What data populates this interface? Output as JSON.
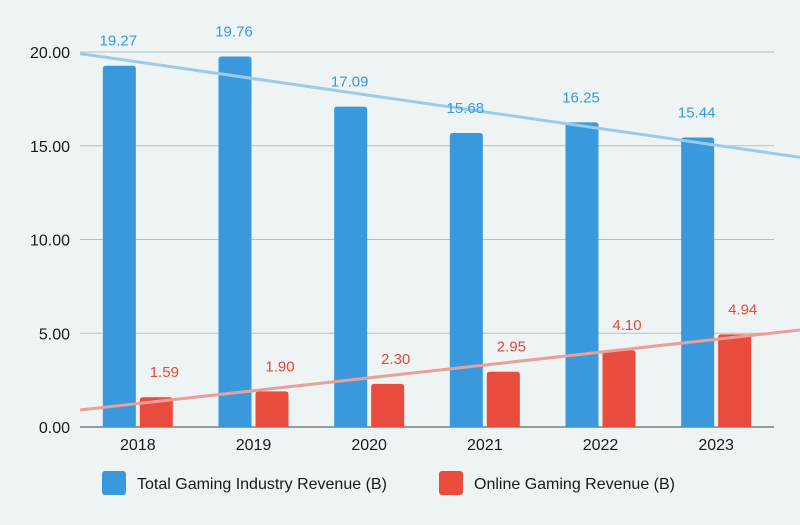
{
  "chart_data": {
    "type": "bar",
    "categories": [
      "2018",
      "2019",
      "2020",
      "2021",
      "2022",
      "2023"
    ],
    "series": [
      {
        "name": "Total Gaming Industry Revenue (B)",
        "values": [
          19.27,
          19.76,
          17.09,
          15.68,
          16.25,
          15.44
        ],
        "labels": [
          "19.27",
          "19.76",
          "17.09",
          "15.68",
          "16.25",
          "15.44"
        ],
        "color": "#3a99dd",
        "label_color": "#3a99dd",
        "trendline_color": "#9ccbe8"
      },
      {
        "name": "Online Gaming Revenue (B)",
        "values": [
          1.59,
          1.9,
          2.3,
          2.95,
          4.1,
          4.94
        ],
        "labels": [
          "1.59",
          "1.90",
          "2.30",
          "2.95",
          "4.10",
          "4.94"
        ],
        "color": "#e94b3c",
        "label_color": "#e04a3a",
        "trendline_color": "#e8a09a"
      }
    ],
    "trendlines": "linear",
    "ylim": [
      0,
      20
    ],
    "yticks": [
      "0.00",
      "5.00",
      "10.00",
      "15.00",
      "20.00"
    ],
    "grid": true,
    "legend_position": "bottom",
    "title": "",
    "xlabel": "",
    "ylabel": ""
  }
}
